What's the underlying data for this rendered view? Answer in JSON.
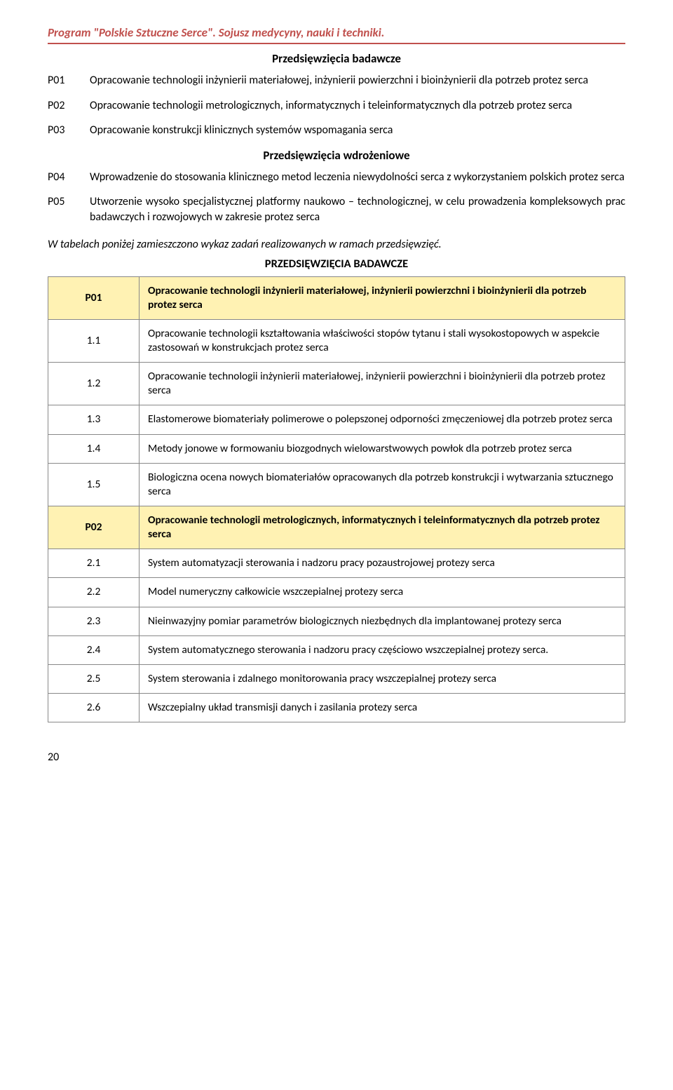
{
  "header": {
    "title": "Program \"Polskie Sztuczne Serce\". Sojusz medycyny, nauki i techniki.",
    "title_color": "#c0504d",
    "rule_color": "#c0504d"
  },
  "research_section": {
    "heading": "Przedsięwzięcia badawcze",
    "items": [
      {
        "code": "P01",
        "text": "Opracowanie technologii inżynierii materiałowej, inżynierii powierzchni i bioinżynierii dla potrzeb protez serca"
      },
      {
        "code": "P02",
        "text": "Opracowanie technologii metrologicznych, informatycznych i teleinformatycznych dla potrzeb protez serca"
      },
      {
        "code": "P03",
        "text": "Opracowanie konstrukcji klinicznych systemów wspomagania serca"
      }
    ]
  },
  "implementation_section": {
    "heading": "Przedsięwzięcia wdrożeniowe",
    "items": [
      {
        "code": "P04",
        "text": "Wprowadzenie do stosowania klinicznego metod leczenia niewydolności serca  z wykorzystaniem polskich protez serca"
      },
      {
        "code": "P05",
        "text": "Utworzenie wysoko specjalistycznej platformy naukowo – technologicznej, w celu prowadzenia kompleksowych prac badawczych i rozwojowych w zakresie protez serca"
      }
    ]
  },
  "table_intro": "W tabelach poniżej zamieszczono wykaz zadań realizowanych w ramach przedsięwzięć.",
  "table_heading": "PRZEDSIĘWZIĘCIA BADAWCZE",
  "table": {
    "header_bg": "#fff2b3",
    "border_color": "#888888",
    "rows": [
      {
        "type": "group",
        "code": "P01",
        "text": "Opracowanie technologii inżynierii materiałowej, inżynierii powierzchni i bioinżynierii dla potrzeb protez serca"
      },
      {
        "type": "item",
        "code": "1.1",
        "text": "Opracowanie technologii kształtowania właściwości stopów tytanu i stali wysokostopowych w aspekcie zastosowań w konstrukcjach protez serca"
      },
      {
        "type": "item",
        "code": "1.2",
        "text": "Opracowanie technologii inżynierii materiałowej, inżynierii powierzchni i bioinżynierii dla potrzeb protez serca"
      },
      {
        "type": "item",
        "code": "1.3",
        "text": "Elastomerowe biomateriały polimerowe  o polepszonej odporności zmęczeniowej dla potrzeb protez serca"
      },
      {
        "type": "item",
        "code": "1.4",
        "text": "Metody jonowe w formowaniu biozgodnych wielowarstwowych powłok dla potrzeb protez serca"
      },
      {
        "type": "item",
        "code": "1.5",
        "text": "Biologiczna ocena nowych biomateriałów opracowanych dla potrzeb konstrukcji i wytwarzania sztucznego serca"
      },
      {
        "type": "group",
        "code": "P02",
        "text": "Opracowanie technologii metrologicznych, informatycznych i teleinformatycznych dla potrzeb protez serca"
      },
      {
        "type": "item",
        "code": "2.1",
        "text": "System automatyzacji sterowania i nadzoru pracy pozaustrojowej protezy serca"
      },
      {
        "type": "item",
        "code": "2.2",
        "text": "Model numeryczny całkowicie wszczepialnej protezy serca"
      },
      {
        "type": "item",
        "code": "2.3",
        "text": "Nieinwazyjny pomiar parametrów biologicznych niezbędnych dla implantowanej protezy serca"
      },
      {
        "type": "item",
        "code": "2.4",
        "text": "System automatycznego sterowania i nadzoru pracy częściowo wszczepialnej protezy serca."
      },
      {
        "type": "item",
        "code": "2.5",
        "text": "System sterowania i zdalnego monitorowania pracy wszczepialnej protezy serca"
      },
      {
        "type": "item",
        "code": "2.6",
        "text": "Wszczepialny układ transmisji danych i zasilania protezy serca"
      }
    ]
  },
  "page_number": "20"
}
